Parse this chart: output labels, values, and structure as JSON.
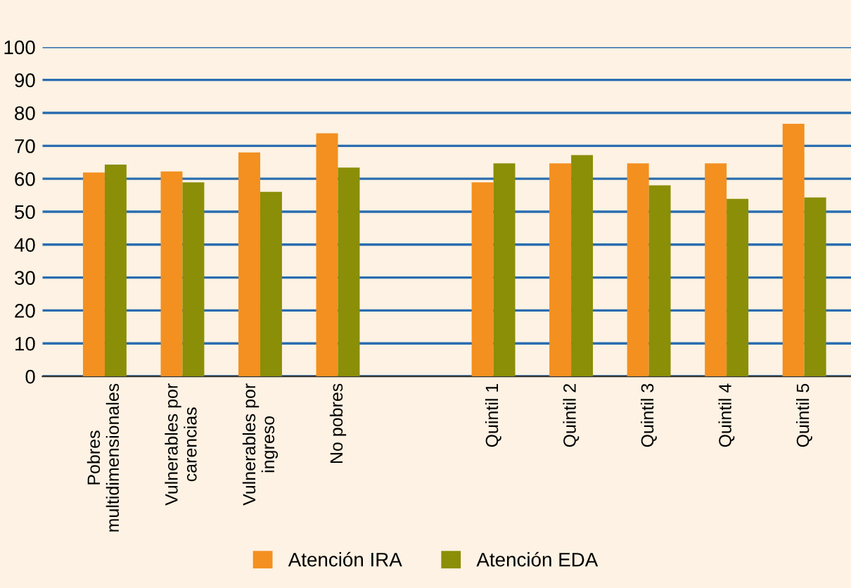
{
  "chart_data": {
    "type": "bar",
    "categories": [
      "Pobres\nmultidimensionales",
      "Vulnerables por\ncarencias",
      "Vulnerables por\ningreso",
      "No pobres",
      null,
      "Quintil 1",
      "Quintil 2",
      "Quintil 3",
      "Quintil 4",
      "Quintil 5"
    ],
    "series": [
      {
        "name": "Atención IRA",
        "color": "#f39020",
        "values": [
          61.9,
          62.2,
          68.0,
          73.8,
          null,
          58.9,
          64.7,
          64.7,
          64.7,
          76.7
        ]
      },
      {
        "name": "Atención EDA",
        "color": "#8b8e07",
        "values": [
          64.3,
          58.9,
          56.0,
          63.4,
          null,
          64.7,
          67.2,
          58.0,
          53.9,
          54.3
        ]
      }
    ],
    "ylim": [
      0,
      100
    ],
    "yticks": [
      0,
      10,
      20,
      30,
      40,
      50,
      60,
      70,
      80,
      90,
      100
    ],
    "grid": "y",
    "legend": "bottom"
  }
}
